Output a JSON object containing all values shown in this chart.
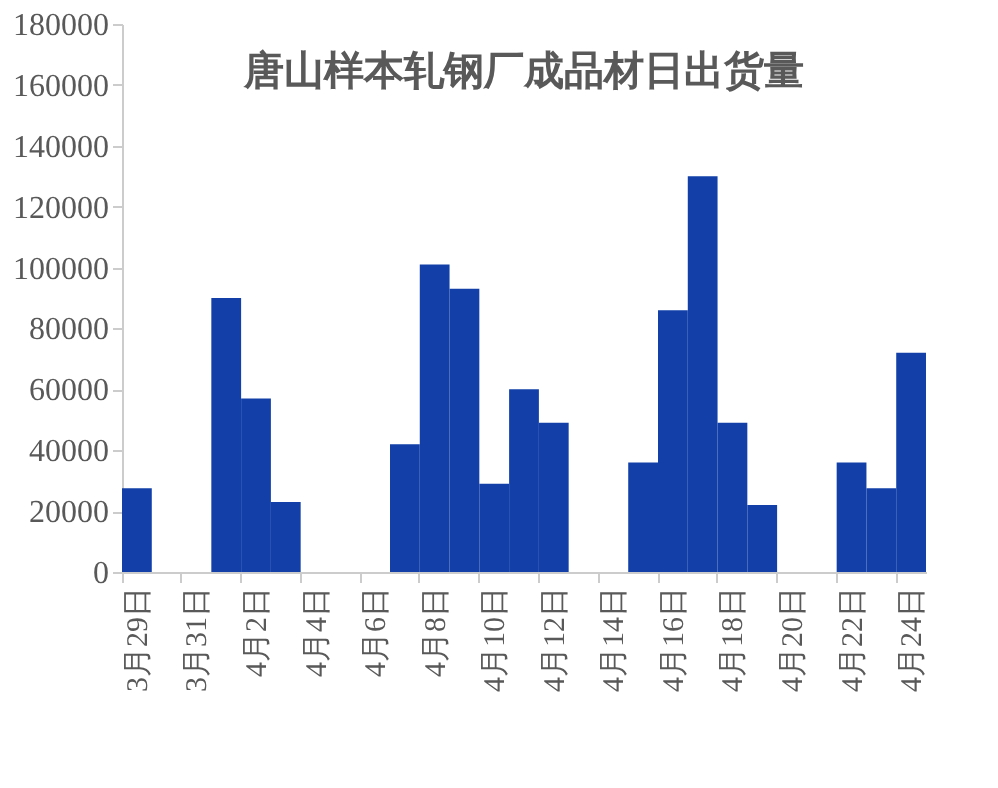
{
  "chart_data": {
    "type": "bar",
    "title": "唐山样本轧钢厂成品材日出货量",
    "categories": [
      "3月29日",
      null,
      "3月31日",
      null,
      "4月2日",
      null,
      "4月4日",
      null,
      "4月6日",
      null,
      "4月8日",
      null,
      "4月10日",
      null,
      "4月12日",
      null,
      "4月14日",
      null,
      "4月16日",
      null,
      "4月18日",
      null,
      "4月20日",
      null,
      "4月22日",
      null,
      "4月24日"
    ],
    "values": [
      27500,
      0,
      0,
      90000,
      57000,
      23000,
      0,
      0,
      0,
      42000,
      101000,
      93000,
      29000,
      60000,
      49000,
      0,
      0,
      36000,
      86000,
      130000,
      49000,
      22000,
      0,
      0,
      36000,
      27500,
      72000
    ],
    "color": "#1240a8",
    "ylim": [
      0,
      180000
    ],
    "yticks": [
      0,
      20000,
      40000,
      60000,
      80000,
      100000,
      120000,
      140000,
      160000,
      180000
    ],
    "grid": false
  }
}
